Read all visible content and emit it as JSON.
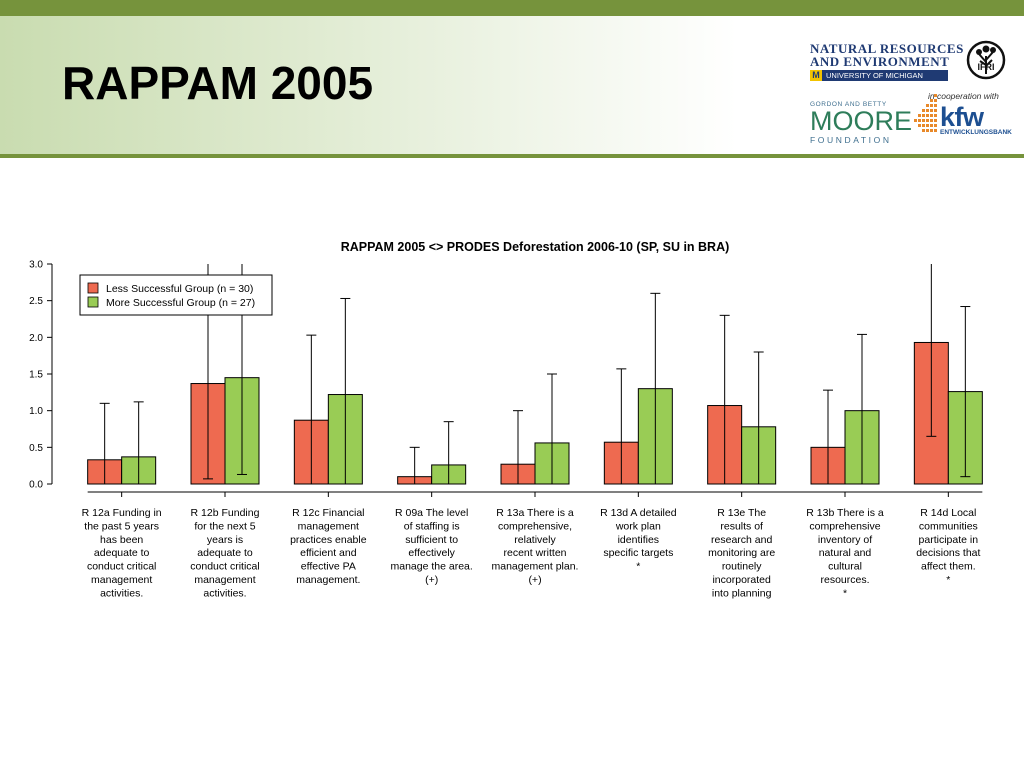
{
  "slide": {
    "title": "RAPPAM 2005"
  },
  "logos": {
    "nre_line1": "NATURAL RESOURCES",
    "nre_line2": "AND ENVIRONMENT",
    "nre_line3": "UNIVERSITY OF MICHIGAN",
    "nre_m": "M",
    "ifri": "IFRI",
    "cooperation": "in cooperation with",
    "moore_line1": "GORDON AND BETTY",
    "moore_line2": "MOORE",
    "moore_line3": "FOUNDATION",
    "kfw": "kfw",
    "kfw_sub": "ENTWICKLUNGSBANK"
  },
  "colors": {
    "less_successful": "#ee6a50",
    "more_successful": "#99cc55",
    "header_green": "#76933c"
  },
  "chart_data": {
    "type": "bar",
    "title": "RAPPAM 2005 <> PRODES Deforestation 2006-10 (SP, SU in BRA)",
    "xlabel": "",
    "ylabel": "",
    "ylim": [
      0,
      3
    ],
    "yticks": [
      "0.0",
      "0.5",
      "1.0",
      "1.5",
      "2.0",
      "2.5",
      "3.0"
    ],
    "legend_position": "top-left",
    "grid": false,
    "categories": [
      [
        "R 12a Funding in",
        "the past 5 years",
        "has been",
        "adequate to",
        "conduct critical",
        "management",
        "activities."
      ],
      [
        "R 12b Funding",
        "for the next 5",
        "years is",
        "adequate to",
        "conduct critical",
        "management",
        "activities."
      ],
      [
        "R 12c Financial",
        "management",
        "practices enable",
        "efficient and",
        "effective PA",
        "management."
      ],
      [
        "R 09a The level",
        "of staffing is",
        "sufficient to",
        "effectively",
        "manage the area.",
        "(+)"
      ],
      [
        "R 13a There is a",
        "comprehensive,",
        "relatively",
        "recent written",
        "management plan.",
        "(+)"
      ],
      [
        "R 13d A detailed",
        "work plan",
        "identifies",
        "specific targets",
        "*"
      ],
      [
        "R 13e The",
        "results of",
        "research and",
        "monitoring are",
        "routinely",
        "incorporated",
        "into planning"
      ],
      [
        "R 13b There is a",
        "comprehensive",
        "inventory of",
        "natural and",
        "cultural",
        "resources.",
        "*"
      ],
      [
        "R 14d Local",
        "communities",
        "participate in",
        "decisions that",
        "affect them.",
        "*"
      ]
    ],
    "series": [
      {
        "name": "Less Successful Group (n = 30)",
        "values": [
          0.33,
          1.37,
          0.87,
          0.1,
          0.27,
          0.57,
          1.07,
          0.5,
          1.93
        ],
        "error_low": [
          0.0,
          0.07,
          0.0,
          0.0,
          0.0,
          0.0,
          0.0,
          0.0,
          0.65
        ],
        "error_high": [
          1.1,
          3.0,
          2.03,
          0.5,
          1.0,
          1.57,
          2.3,
          1.28,
          3.0
        ]
      },
      {
        "name": "More Successful Group (n = 27)",
        "values": [
          0.37,
          1.45,
          1.22,
          0.26,
          0.56,
          1.3,
          0.78,
          1.0,
          1.26
        ],
        "error_low": [
          0.0,
          0.13,
          0.0,
          0.0,
          0.0,
          0.0,
          0.0,
          0.0,
          0.1
        ],
        "error_high": [
          1.12,
          3.0,
          2.53,
          0.85,
          1.5,
          2.6,
          1.8,
          2.04,
          2.42
        ]
      }
    ]
  }
}
